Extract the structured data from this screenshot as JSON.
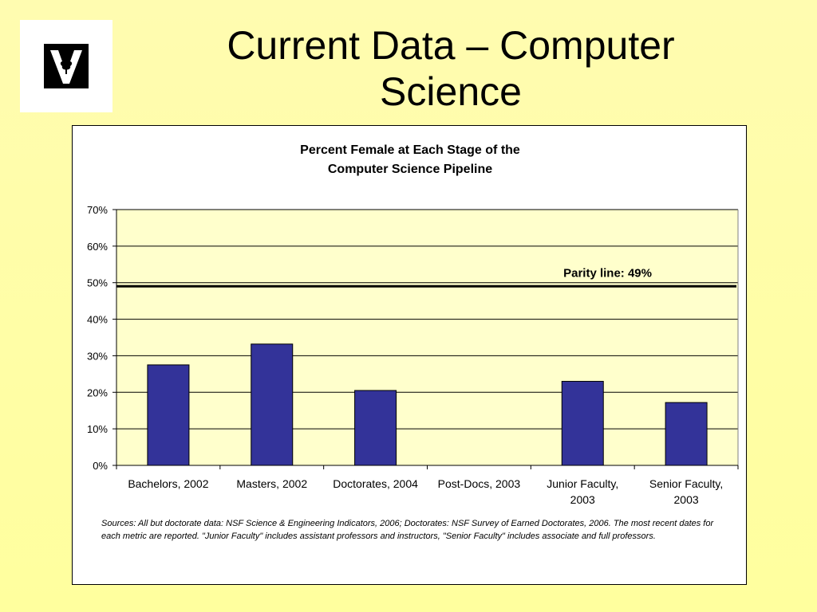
{
  "slide": {
    "title": "Current Data – Computer Science",
    "logo_icon": "vanderbilt-v-oak-leaf-logo"
  },
  "chart_data": {
    "type": "bar",
    "title_lines": [
      "Percent Female at Each Stage of the",
      "Computer Science Pipeline"
    ],
    "categories": [
      [
        "Bachelors, 2002"
      ],
      [
        "Masters, 2002"
      ],
      [
        "Doctorates, 2004"
      ],
      [
        "Post-Docs, 2003"
      ],
      [
        "Junior Faculty,",
        "2003"
      ],
      [
        "Senior Faculty,",
        "2003"
      ]
    ],
    "values": [
      27.5,
      33.2,
      20.5,
      null,
      23.0,
      17.2
    ],
    "ylim": [
      0,
      70
    ],
    "yticks": [
      0,
      10,
      20,
      30,
      40,
      50,
      60,
      70
    ],
    "ytick_labels": [
      "0%",
      "10%",
      "20%",
      "30%",
      "40%",
      "50%",
      "60%",
      "70%"
    ],
    "grid": true,
    "bar_color": "#333399",
    "plot_background": "#ffffcc",
    "reference_line": {
      "value": 49,
      "label": "Parity line: 49%"
    },
    "sources": "Sources: All but doctorate data: NSF Science & Engineering Indicators, 2006; Doctorates: NSF Survey of Earned Doctorates, 2006. The most recent dates for each metric are reported. \"Junior Faculty\" includes assistant professors and instructors, \"Senior Faculty\" includes associate and full professors."
  }
}
